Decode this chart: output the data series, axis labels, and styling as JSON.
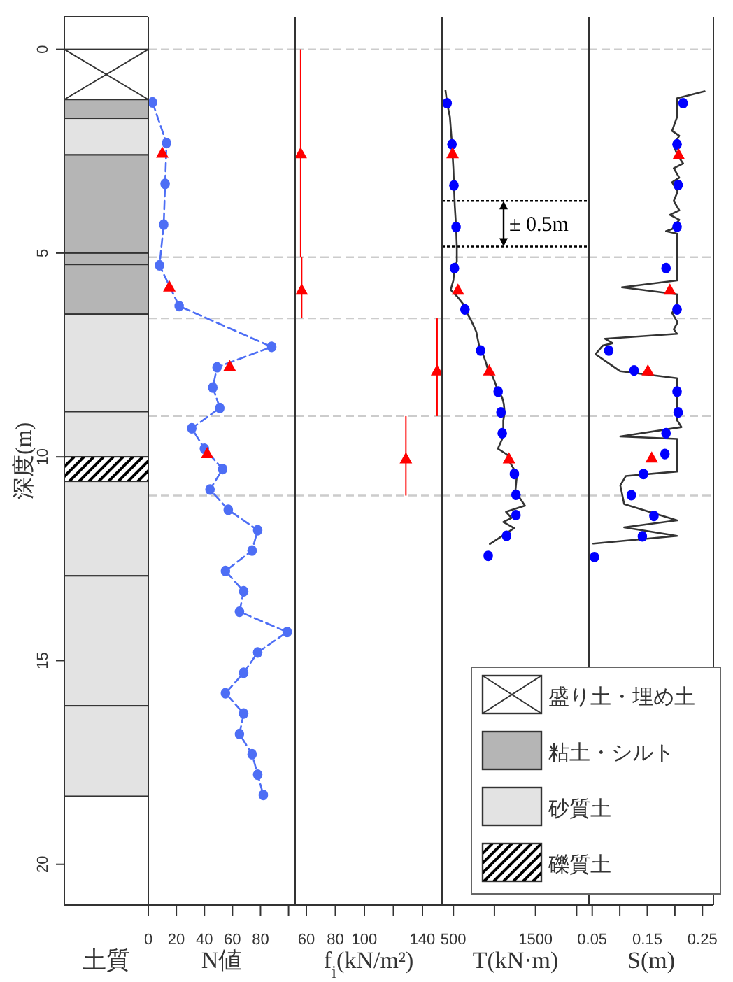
{
  "chart_data": [
    {
      "type": "bar",
      "stacked": true,
      "categories": [
        null
      ],
      "ylabel": "深度(m)",
      "xlabel": "土質",
      "ylim": [
        21,
        -0.8
      ],
      "yticks": [
        0,
        5,
        10,
        15,
        20
      ],
      "tick_labels": "y",
      "legend": "bottom right",
      "series": [
        {
          "name": "盛り土・埋め土",
          "color": "#ffffff",
          "values": [
            1.23
          ]
        },
        {
          "name": "粘土・シルト",
          "color": "#b5b5b5",
          "values": [
            0.46
          ]
        },
        {
          "name": "砂質土",
          "color": "#e3e3e3",
          "values": [
            0.9
          ]
        },
        {
          "color": "#b5b5b5",
          "values": [
            2.41
          ]
        },
        {
          "color": "#b5b5b5",
          "values": [
            0.28
          ]
        },
        {
          "color": "#b5b5b5",
          "values": [
            1.22
          ]
        },
        {
          "color": "#e3e3e3",
          "values": [
            2.39
          ]
        },
        {
          "color": "#e3e3e3",
          "values": [
            1.11
          ]
        },
        {
          "name": "礫質土",
          "color": "#ffffff",
          "values": [
            0.6
          ]
        },
        {
          "color": "#e3e3e3",
          "values": [
            2.32
          ]
        },
        {
          "color": "#e3e3e3",
          "values": [
            3.19
          ]
        },
        {
          "color": "#e3e3e3",
          "values": [
            2.22
          ]
        }
      ]
    },
    {
      "type": "line",
      "xlabel": "N値",
      "xlim": [
        0,
        104.7
      ],
      "xticks": [
        0,
        20,
        40,
        60,
        80,
        {
          "value": 100,
          "label": null
        }
      ],
      "ylim": [
        21,
        -0.8
      ],
      "tick_labels": "x",
      "ref_lines": [
        {
          "axis": "y",
          "value": 0,
          "color": "#cccccc",
          "line_style": "dashed"
        },
        {
          "axis": "y",
          "value": 5.1,
          "color": "#cccccc",
          "line_style": "dashed"
        },
        {
          "axis": "y",
          "value": 6.6,
          "color": "#cccccc",
          "line_style": "dashed"
        },
        {
          "axis": "y",
          "value": 9.0,
          "color": "#cccccc",
          "line_style": "dashed"
        },
        {
          "axis": "y",
          "value": 10.95,
          "color": "#cccccc",
          "line_style": "dashed"
        }
      ],
      "series": [
        {
          "type": "line",
          "color": "#4d6ef5",
          "marker": "circle",
          "line_style": "dashed",
          "x": [
            3,
            13,
            12,
            11,
            8,
            22,
            88,
            49,
            46,
            51,
            31,
            40,
            53,
            44,
            57,
            78,
            74,
            55,
            68,
            65,
            99,
            78,
            68,
            55,
            68,
            65,
            74,
            78,
            82
          ],
          "values": [
            1.3,
            2.3,
            3.3,
            4.3,
            5.3,
            6.3,
            7.3,
            7.8,
            8.3,
            8.8,
            9.3,
            9.8,
            10.3,
            10.8,
            11.3,
            11.8,
            12.3,
            12.8,
            13.3,
            13.8,
            14.3,
            14.8,
            15.3,
            15.8,
            16.3,
            16.8,
            17.3,
            17.8,
            18.3
          ]
        },
        {
          "type": "scatter",
          "color": "#ff0000",
          "marker": "triangle",
          "x": [
            10,
            15,
            58,
            42
          ],
          "values": [
            2.54,
            5.82,
            7.77,
            9.91
          ]
        }
      ]
    },
    {
      "type": "scatter",
      "xlabel": "f$_{i}$(kN/m²)",
      "xlim": [
        52.3,
        153.5
      ],
      "xticks": [
        60,
        80,
        100,
        {
          "value": 120,
          "label": null
        },
        140
      ],
      "ylim": [
        21,
        -0.8
      ],
      "tick_labels": "x",
      "ref_lines": [
        {
          "axis": "y",
          "value": 0,
          "color": "#cccccc",
          "line_style": "dashed"
        },
        {
          "axis": "y",
          "value": 5.1,
          "color": "#cccccc",
          "line_style": "dashed"
        },
        {
          "axis": "y",
          "value": 6.6,
          "color": "#cccccc",
          "line_style": "dashed"
        },
        {
          "axis": "y",
          "value": 9.0,
          "color": "#cccccc",
          "line_style": "dashed"
        },
        {
          "axis": "y",
          "value": 10.95,
          "color": "#cccccc",
          "line_style": "dashed"
        }
      ],
      "series": [
        {
          "type": "scatter",
          "color": "#ff0000",
          "marker": "triangle",
          "x": [
            56.1,
            56.8,
            150.1,
            128.6
          ],
          "values": [
            2.55,
            5.9,
            7.88,
            10.04
          ],
          "errors": [
            [
              0,
              5.1
            ],
            [
              5.1,
              6.6
            ],
            [
              6.6,
              9.0
            ],
            [
              9.0,
              10.95
            ]
          ]
        }
      ]
    },
    {
      "type": "line",
      "xlabel": "T(kN·m)",
      "xlim": [
        362,
        2150
      ],
      "xticks": [
        500,
        {
          "value": 1000,
          "label": null
        },
        1500,
        {
          "value": 2000,
          "label": null
        }
      ],
      "ylim": [
        21,
        -0.8
      ],
      "tick_labels": "x",
      "annotations": [
        "± 0.5m"
      ],
      "ref_lines": [
        {
          "axis": "y",
          "value": 0,
          "color": "#cccccc",
          "line_style": "dashed"
        },
        {
          "axis": "y",
          "value": 5.1,
          "color": "#cccccc",
          "line_style": "dashed"
        },
        {
          "axis": "y",
          "value": 6.6,
          "color": "#cccccc",
          "line_style": "dashed"
        },
        {
          "axis": "y",
          "value": 9.0,
          "color": "#cccccc",
          "line_style": "dashed"
        },
        {
          "axis": "y",
          "value": 10.95,
          "color": "#cccccc",
          "line_style": "dashed"
        },
        {
          "axis": "y",
          "value": 3.72,
          "color": "#000000",
          "line_style": "dotted"
        },
        {
          "axis": "y",
          "value": 4.84,
          "color": "#000000",
          "line_style": "dotted"
        }
      ],
      "series": [
        {
          "type": "line",
          "color": "#333333",
          "marker": "none",
          "x": [
            404,
            424,
            458,
            483,
            500,
            507,
            517,
            533,
            542,
            542,
            513,
            500,
            467,
            549,
            615,
            665,
            714,
            779,
            813,
            845,
            894,
            927,
            976,
            1010,
            1045,
            1092,
            1114,
            1124,
            1108,
            1108,
            1095,
            1042,
            1158,
            1190,
            1240,
            1272,
            1256,
            1306,
            1371,
            1141,
            1207,
            1108,
            1240,
            944
          ],
          "values": [
            1.01,
            1.32,
            1.66,
            2.33,
            2.92,
            3.34,
            3.84,
            4.36,
            4.87,
            5.21,
            5.37,
            5.67,
            5.9,
            6.07,
            6.24,
            6.47,
            6.64,
            6.93,
            7.27,
            7.39,
            7.67,
            7.9,
            8.02,
            8.19,
            8.4,
            8.53,
            8.7,
            8.91,
            9.11,
            9.34,
            9.56,
            9.8,
            9.95,
            10.14,
            10.31,
            10.48,
            10.82,
            11.0,
            11.2,
            11.35,
            11.5,
            11.6,
            11.75,
            12.14
          ]
        },
        {
          "type": "scatter",
          "color": "#0000ff",
          "marker": "circle",
          "x": [
            424,
            483,
            507,
            533,
            513,
            641,
            832,
            1045,
            1079,
            1095,
            1243,
            1262,
            1262,
            1148,
            924
          ],
          "values": [
            1.32,
            2.33,
            3.34,
            4.36,
            5.37,
            6.38,
            7.39,
            8.4,
            8.91,
            9.42,
            10.42,
            10.93,
            11.43,
            11.94,
            12.43
          ]
        },
        {
          "type": "scatter",
          "color": "#ff0000",
          "marker": "triangle",
          "x": [
            490,
            556,
            937,
            1177
          ],
          "values": [
            2.55,
            5.9,
            7.88,
            10.04
          ]
        }
      ]
    },
    {
      "type": "line",
      "xlabel": "S(m)",
      "xlim": [
        0.044,
        0.27
      ],
      "xticks": [
        0.05,
        {
          "value": 0.1,
          "label": null
        },
        0.15,
        {
          "value": 0.2,
          "label": null
        },
        0.25
      ],
      "ylim": [
        21,
        -0.8
      ],
      "tick_labels": "x",
      "ref_lines": [
        {
          "axis": "y",
          "value": 0,
          "color": "#cccccc",
          "line_style": "dashed"
        },
        {
          "axis": "y",
          "value": 5.1,
          "color": "#cccccc",
          "line_style": "dashed"
        },
        {
          "axis": "y",
          "value": 6.6,
          "color": "#cccccc",
          "line_style": "dashed"
        },
        {
          "axis": "y",
          "value": 9.0,
          "color": "#cccccc",
          "line_style": "dashed"
        },
        {
          "axis": "y",
          "value": 10.95,
          "color": "#cccccc",
          "line_style": "dashed"
        }
      ],
      "series": [
        {
          "type": "line",
          "color": "#333333",
          "marker": "none",
          "x": [
            0.254,
            0.204,
            0.204,
            0.195,
            0.208,
            0.198,
            0.204,
            0.215,
            0.198,
            0.208,
            0.195,
            0.205,
            0.198,
            0.208,
            0.191,
            0.208,
            0.195,
            0.184,
            0.204,
            0.204,
            0.104,
            0.204,
            0.204,
            0.195,
            0.205,
            0.198,
            0.204,
            0.073,
            0.087,
            0.069,
            0.056,
            0.101,
            0.204,
            0.204,
            0.212,
            0.101,
            0.204,
            0.204,
            0.111,
            0.101,
            0.108,
            0.204,
            0.108,
            0.204,
            0.052
          ],
          "values": [
            1.03,
            1.2,
            1.66,
            2.0,
            2.12,
            2.35,
            2.58,
            2.8,
            2.92,
            3.15,
            3.26,
            3.49,
            3.72,
            3.95,
            4.06,
            4.18,
            4.41,
            4.46,
            4.52,
            5.67,
            5.84,
            6.01,
            6.24,
            6.47,
            6.7,
            6.87,
            6.98,
            7.1,
            7.21,
            7.27,
            7.48,
            7.9,
            8.07,
            9.1,
            9.27,
            9.5,
            9.56,
            10.36,
            10.47,
            10.7,
            11.16,
            11.56,
            11.73,
            11.94,
            12.13
          ]
        },
        {
          "type": "scatter",
          "color": "#0000ff",
          "marker": "circle",
          "x": [
            0.215,
            0.204,
            0.206,
            0.204,
            0.184,
            0.204,
            0.08,
            0.126,
            0.204,
            0.206,
            0.184,
            0.182,
            0.143,
            0.121,
            0.162,
            0.141,
            0.054
          ],
          "values": [
            1.32,
            2.33,
            3.33,
            4.35,
            5.37,
            6.38,
            7.39,
            7.88,
            8.4,
            8.91,
            9.42,
            9.93,
            10.42,
            10.94,
            11.45,
            11.95,
            12.46
          ]
        },
        {
          "type": "scatter",
          "color": "#ff0000",
          "marker": "triangle",
          "x": [
            0.207,
            0.191,
            0.151,
            0.158
          ],
          "values": [
            2.58,
            5.9,
            7.88,
            10.02
          ]
        }
      ]
    }
  ]
}
